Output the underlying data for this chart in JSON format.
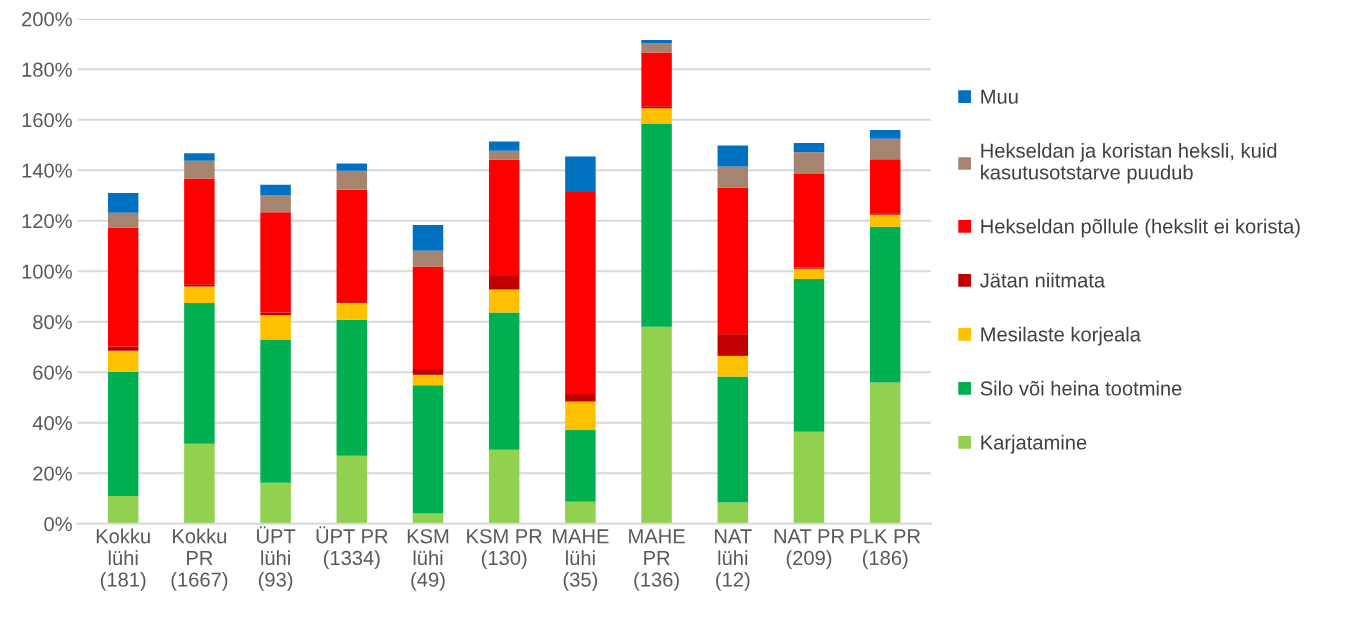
{
  "chart_data": {
    "type": "bar",
    "stacked": true,
    "categories": [
      "Kokku\nlühi\n(181)",
      "Kokku\nPR\n(1667)",
      "ÜPT\nlühi\n(93)",
      "ÜPT PR\n(1334)",
      "KSM\nlühi\n(49)",
      "KSM PR\n(130)",
      "MAHE\nlühi\n(35)",
      "MAHE\nPR\n(136)",
      "NAT\nlühi\n(12)",
      "NAT PR\n(209)",
      "PLK PR\n(186)"
    ],
    "series": [
      {
        "name": "Karjatamine",
        "color": "#92d050",
        "values": [
          11,
          31.7,
          16.2,
          26.9,
          4.1,
          29.3,
          8.7,
          78,
          8.4,
          36.4,
          56
        ]
      },
      {
        "name": "Silo või heina tootmine",
        "color": "#00b050",
        "values": [
          49.2,
          55.7,
          56.8,
          53.9,
          50.8,
          54.4,
          28.4,
          80.5,
          49.9,
          60.5,
          61.6
        ]
      },
      {
        "name": "Mesilaste korjeala",
        "color": "#ffc000",
        "values": [
          8.3,
          6.6,
          9.6,
          6.7,
          4.1,
          9.1,
          11.3,
          6.1,
          8.2,
          4.1,
          4.8
        ]
      },
      {
        "name": "Jätan niitmata",
        "color": "#c00000",
        "values": [
          1.7,
          0.9,
          1.1,
          0.7,
          2.3,
          5.7,
          3.0,
          0.8,
          8.6,
          0.5,
          0.6
        ]
      },
      {
        "name": "Hekseldan põllule (hekslit ei korista)",
        "color": "#ff0000",
        "values": [
          47.1,
          41.9,
          39.7,
          44.1,
          40.6,
          45.8,
          80.0,
          21.3,
          58.1,
          37,
          21.4
        ]
      },
      {
        "name": "Hekseldan ja koristan heksli, kuid\nkasutusotstarve puudub",
        "color": "#a68470",
        "values": [
          5.9,
          7,
          6.6,
          7.5,
          6.2,
          3.4,
          0,
          3.7,
          8.3,
          8.7,
          8.1
        ]
      },
      {
        "name": "Muu",
        "color": "#0070c0",
        "values": [
          7.8,
          3,
          4.3,
          2.9,
          10.2,
          3.7,
          14.1,
          1.2,
          8.3,
          3.6,
          3.5
        ]
      }
    ],
    "ylim": [
      0,
      200
    ],
    "yticks": [
      {
        "value": 0,
        "label": "0%"
      },
      {
        "value": 20,
        "label": "20%"
      },
      {
        "value": 40,
        "label": "40%"
      },
      {
        "value": 60,
        "label": "60%"
      },
      {
        "value": 80,
        "label": "80%"
      },
      {
        "value": 100,
        "label": "100%"
      },
      {
        "value": 120,
        "label": "120%"
      },
      {
        "value": 140,
        "label": "140%"
      },
      {
        "value": 160,
        "label": "160%"
      },
      {
        "value": 180,
        "label": "180%"
      },
      {
        "value": 200,
        "label": "200%"
      }
    ],
    "grid": "y",
    "legend": "right"
  }
}
